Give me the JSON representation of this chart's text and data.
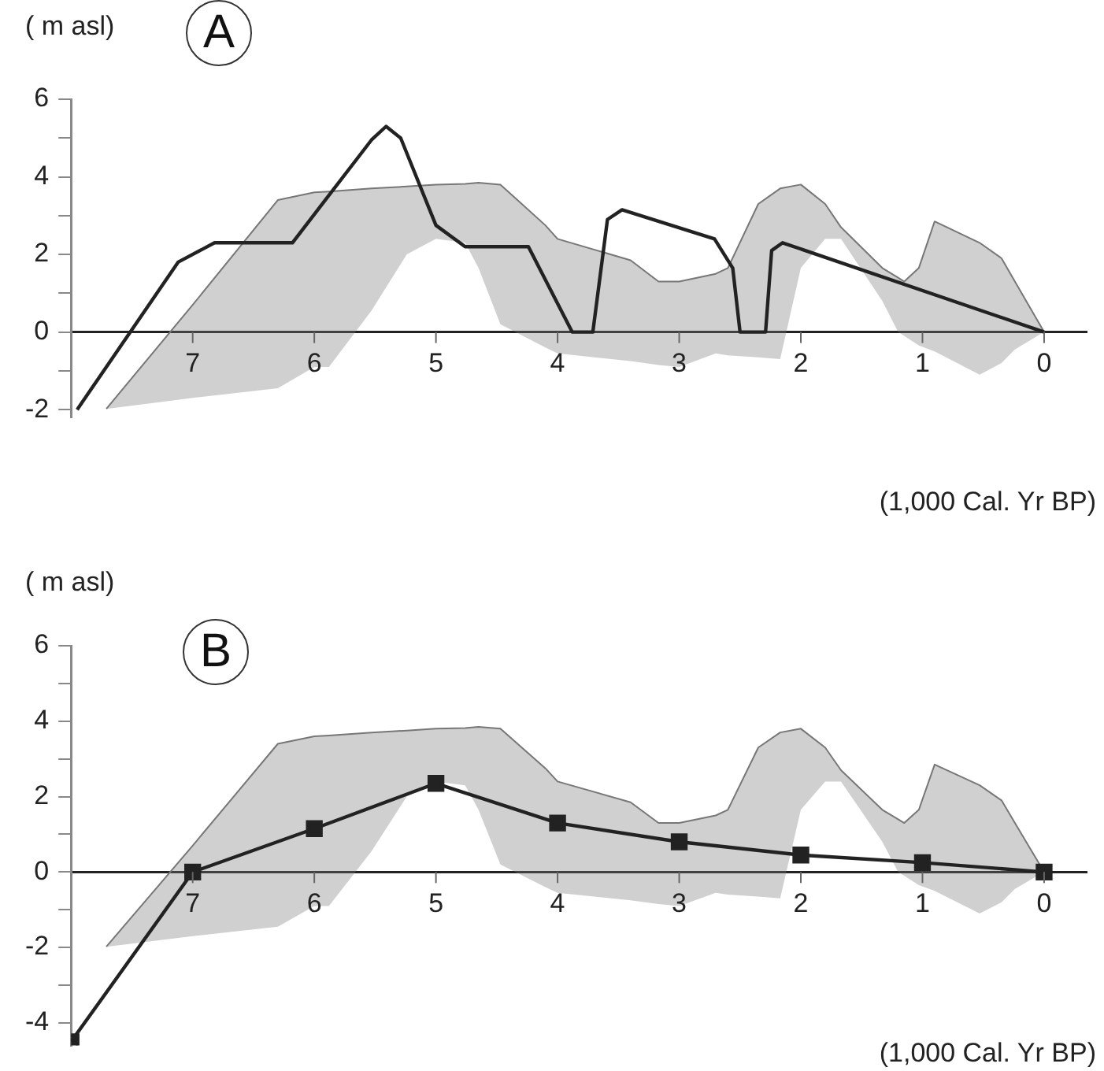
{
  "chart_data": [
    {
      "type": "line",
      "ylabel": "( m asl)",
      "xlabel": "(1,000 Cal. Yr BP)",
      "annotations": [
        "A"
      ],
      "xlim": [
        8,
        -0.35
      ],
      "xticks": [
        7,
        6,
        5,
        4,
        3,
        2,
        1,
        0
      ],
      "ylim": [
        -2.2,
        6
      ],
      "yticks": [
        6,
        {
          "value": 5,
          "label": null
        },
        4,
        {
          "value": 3,
          "label": null
        },
        2,
        {
          "value": 1,
          "label": null
        },
        0,
        {
          "value": -1,
          "label": null
        },
        -2
      ],
      "series": [
        {
          "color": "#777777",
          "x": [
            7.71,
            7.0,
            6.3,
            6.0,
            5.88,
            5.53,
            5.24,
            5.0,
            4.76,
            4.65,
            4.47,
            4.1,
            4.0,
            3.4,
            3.17,
            3.0,
            2.7,
            2.6,
            2.35,
            2.17,
            2.0,
            1.8,
            1.67,
            1.33,
            1.2,
            1.15,
            1.03,
            0.9,
            0.53,
            0.35,
            0.24,
            0
          ],
          "values": [
            -1.98,
            0.7,
            3.4,
            3.6,
            3.62,
            3.7,
            3.75,
            3.8,
            3.82,
            3.85,
            3.8,
            2.75,
            2.4,
            1.85,
            1.3,
            1.3,
            1.5,
            1.65,
            3.3,
            3.7,
            3.8,
            3.3,
            2.7,
            1.65,
            1.4,
            1.3,
            1.65,
            2.85,
            2.3,
            1.9,
            1.3,
            0
          ],
          "upper": [
            -1.98,
            0.7,
            3.4,
            3.6,
            3.62,
            3.7,
            3.75,
            3.8,
            3.82,
            3.85,
            3.8,
            2.75,
            2.4,
            1.85,
            1.3,
            1.3,
            1.5,
            1.65,
            3.3,
            3.7,
            3.8,
            3.3,
            2.7,
            1.65,
            1.4,
            1.3,
            1.65,
            2.85,
            2.3,
            1.9,
            1.3,
            0
          ],
          "lower": [
            -1.98,
            -1.7,
            -1.45,
            -0.9,
            -0.9,
            0.55,
            2.0,
            2.4,
            2.3,
            1.65,
            0.2,
            -0.4,
            -0.55,
            -0.75,
            -0.85,
            -0.9,
            -0.55,
            -0.6,
            -0.65,
            -0.7,
            1.65,
            2.4,
            2.4,
            0.8,
            0,
            -0.1,
            -0.35,
            -0.5,
            -1.1,
            -0.8,
            -0.45,
            0
          ]
        },
        {
          "color": "#222222",
          "x": [
            7.95,
            7.12,
            6.82,
            6.18,
            5.53,
            5.41,
            5.29,
            5.0,
            4.76,
            4.24,
            3.88,
            3.71,
            3.59,
            3.47,
            2.71,
            2.56,
            2.5,
            2.29,
            2.24,
            2.15,
            0
          ],
          "values": [
            -2,
            1.8,
            2.3,
            2.3,
            4.95,
            5.3,
            5.0,
            2.75,
            2.2,
            2.2,
            0,
            0,
            2.9,
            3.15,
            2.4,
            1.65,
            0,
            0,
            2.1,
            2.3,
            0
          ]
        }
      ]
    },
    {
      "type": "line",
      "ylabel": "( m asl)",
      "xlabel": "(1,000 Cal. Yr BP)",
      "annotations": [
        "B"
      ],
      "xlim": [
        8,
        -0.35
      ],
      "xticks": [
        7,
        6,
        5,
        4,
        3,
        2,
        1,
        0
      ],
      "ylim": [
        -4.6,
        6
      ],
      "yticks": [
        6,
        {
          "value": 5,
          "label": null
        },
        4,
        {
          "value": 3,
          "label": null
        },
        2,
        {
          "value": 1,
          "label": null
        },
        0,
        {
          "value": -1,
          "label": null
        },
        -2,
        {
          "value": -3,
          "label": null
        },
        -4
      ],
      "series": [
        {
          "color": "#777777",
          "x": [
            7.71,
            7.0,
            6.3,
            6.0,
            5.88,
            5.53,
            5.24,
            5.0,
            4.76,
            4.65,
            4.47,
            4.1,
            4.0,
            3.4,
            3.17,
            3.0,
            2.7,
            2.6,
            2.35,
            2.17,
            2.0,
            1.8,
            1.67,
            1.33,
            1.2,
            1.15,
            1.03,
            0.9,
            0.53,
            0.35,
            0.24,
            0
          ],
          "values": [
            -1.98,
            0.7,
            3.4,
            3.6,
            3.62,
            3.7,
            3.75,
            3.8,
            3.82,
            3.85,
            3.8,
            2.75,
            2.4,
            1.85,
            1.3,
            1.3,
            1.5,
            1.65,
            3.3,
            3.7,
            3.8,
            3.3,
            2.7,
            1.65,
            1.4,
            1.3,
            1.65,
            2.85,
            2.3,
            1.9,
            1.3,
            0
          ],
          "upper": [
            -1.98,
            0.7,
            3.4,
            3.6,
            3.62,
            3.7,
            3.75,
            3.8,
            3.82,
            3.85,
            3.8,
            2.75,
            2.4,
            1.85,
            1.3,
            1.3,
            1.5,
            1.65,
            3.3,
            3.7,
            3.8,
            3.3,
            2.7,
            1.65,
            1.4,
            1.3,
            1.65,
            2.85,
            2.3,
            1.9,
            1.3,
            0
          ],
          "lower": [
            -1.98,
            -1.7,
            -1.45,
            -0.9,
            -0.9,
            0.55,
            2.0,
            2.4,
            2.3,
            1.65,
            0.2,
            -0.4,
            -0.55,
            -0.75,
            -0.85,
            -0.9,
            -0.55,
            -0.6,
            -0.65,
            -0.7,
            1.65,
            2.4,
            2.4,
            0.8,
            0,
            -0.1,
            -0.35,
            -0.5,
            -1.1,
            -0.8,
            -0.45,
            0
          ]
        },
        {
          "color": "#222222",
          "marker": "square",
          "x": [
            8,
            7,
            6,
            5,
            4,
            3,
            2,
            1,
            0
          ],
          "values": [
            -4.5,
            0,
            1.15,
            2.35,
            1.3,
            0.8,
            0.45,
            0.25,
            0
          ]
        }
      ]
    }
  ]
}
